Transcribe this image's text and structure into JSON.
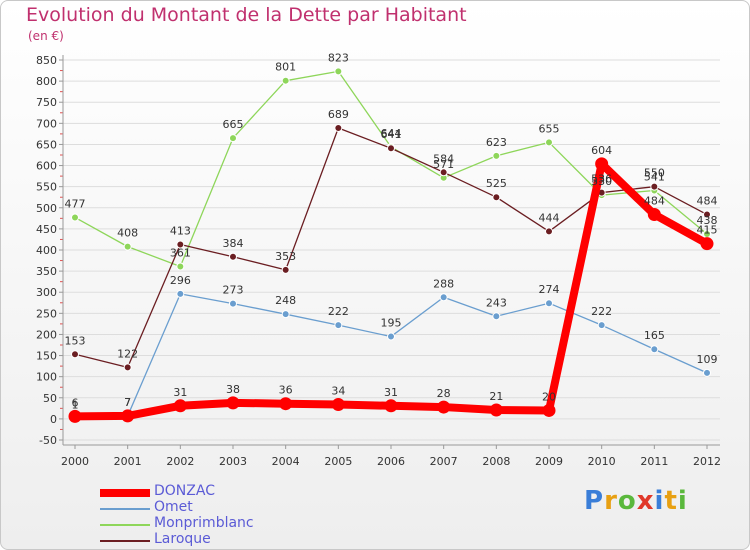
{
  "chart_data": {
    "type": "line",
    "title": "Evolution du Montant de la Dette par Habitant",
    "subtitle": "(en €)",
    "x": [
      "2000",
      "2001",
      "2002",
      "2003",
      "2004",
      "2005",
      "2006",
      "2007",
      "2008",
      "2009",
      "2010",
      "2011",
      "2012"
    ],
    "ylim": [
      -50,
      850
    ],
    "yticks": [
      -50,
      0,
      50,
      100,
      150,
      200,
      250,
      300,
      350,
      400,
      450,
      500,
      550,
      600,
      650,
      700,
      750,
      800,
      850
    ],
    "series": [
      {
        "name": "DONZAC",
        "color": "#ff0000",
        "values": [
          6,
          7,
          31,
          38,
          36,
          34,
          31,
          28,
          21,
          20,
          604,
          484,
          415
        ]
      },
      {
        "name": "Omet",
        "color": "#6a9ecf",
        "values": [
          1,
          7,
          296,
          273,
          248,
          222,
          195,
          288,
          243,
          274,
          222,
          165,
          109
        ]
      },
      {
        "name": "Monprimblanc",
        "color": "#8ed65a",
        "values": [
          477,
          408,
          361,
          665,
          801,
          823,
          644,
          571,
          623,
          655,
          530,
          541,
          438
        ]
      },
      {
        "name": "Laroque",
        "color": "#6b1e22",
        "values": [
          153,
          122,
          413,
          384,
          353,
          689,
          641,
          584,
          525,
          444,
          536,
          550,
          484
        ]
      }
    ]
  },
  "logo": {
    "letters": [
      "P",
      "r",
      "o",
      "x",
      "i",
      "t",
      "i"
    ]
  }
}
